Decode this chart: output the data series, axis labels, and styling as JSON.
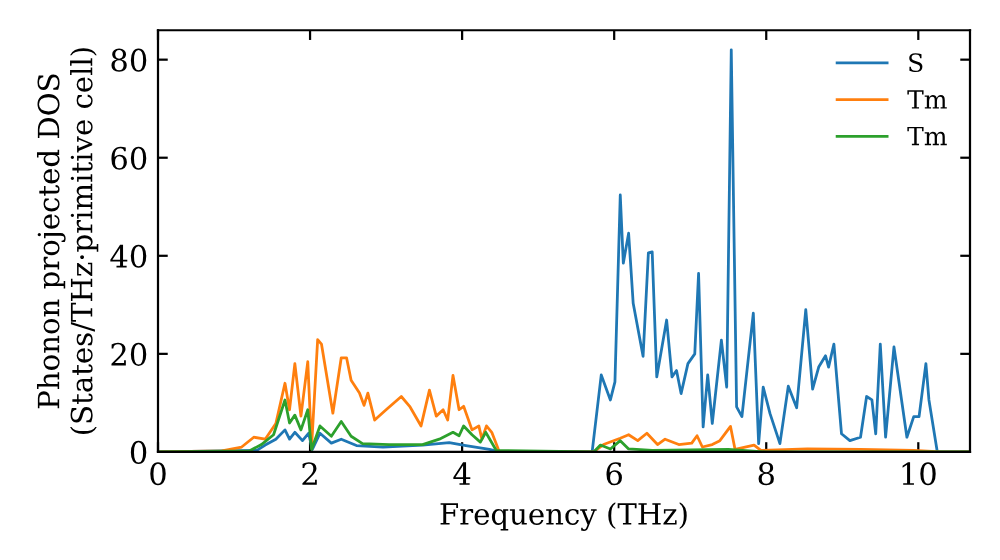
{
  "chart_data": {
    "type": "line",
    "xlabel": "Frequency (THz)",
    "ylabel": "Phonon projected DOS\n(States/THz·primitive cell)",
    "xlim": [
      0,
      10.68
    ],
    "ylim": [
      0,
      86
    ],
    "xticks": [
      0,
      2,
      4,
      6,
      8,
      10
    ],
    "yticks": [
      0,
      20,
      40,
      60,
      80
    ],
    "grid": false,
    "legend": "top right",
    "marker": "none",
    "line_style": "solid",
    "series": [
      {
        "name": "S",
        "color": "#1f77b4",
        "x": [
          0,
          1.3,
          1.41,
          1.55,
          1.67,
          1.73,
          1.8,
          1.9,
          1.98,
          2.03,
          2.13,
          2.28,
          2.41,
          2.61,
          2.96,
          3.48,
          3.83,
          4.05,
          4.36,
          4.49,
          5.71,
          5.83,
          5.95,
          6.01,
          6.08,
          6.12,
          6.19,
          6.25,
          6.38,
          6.45,
          6.5,
          6.56,
          6.69,
          6.76,
          6.82,
          6.88,
          6.97,
          7.06,
          7.11,
          7.17,
          7.23,
          7.29,
          7.41,
          7.48,
          7.54,
          7.61,
          7.68,
          7.83,
          7.9,
          7.96,
          8.05,
          8.18,
          8.29,
          8.4,
          8.52,
          8.61,
          8.69,
          8.78,
          8.82,
          8.89,
          8.99,
          9.1,
          9.24,
          9.32,
          9.39,
          9.44,
          9.5,
          9.57,
          9.68,
          9.85,
          9.94,
          10.01,
          10.1,
          10.14,
          10.25,
          10.68
        ],
        "values": [
          0,
          0.3,
          1.4,
          2.6,
          4.5,
          2.6,
          4,
          2.3,
          3.8,
          0.5,
          3.8,
          1.8,
          2.6,
          1.3,
          1,
          1.4,
          1.9,
          1.3,
          0.5,
          0,
          0,
          15.7,
          10.6,
          14.3,
          52.4,
          38.5,
          44.6,
          30.3,
          19.5,
          40.6,
          40.8,
          15.3,
          26.9,
          15.3,
          16.6,
          11.9,
          18,
          20,
          36.4,
          5.1,
          15.7,
          5.8,
          22.8,
          13.2,
          82,
          9.2,
          7.2,
          28.3,
          1.7,
          13.2,
          7.8,
          1.7,
          13.4,
          9,
          29,
          12.8,
          17.3,
          19.6,
          17.3,
          22,
          3.7,
          2.3,
          3,
          11.3,
          10.6,
          3.7,
          22,
          3,
          21.4,
          3,
          7.2,
          7.2,
          18,
          10.6,
          0,
          0
        ]
      },
      {
        "name": "Tm",
        "color": "#ff7f0e",
        "x": [
          0,
          0.84,
          1.1,
          1.26,
          1.41,
          1.55,
          1.67,
          1.73,
          1.8,
          1.88,
          1.97,
          2.02,
          2.1,
          2.15,
          2.3,
          2.41,
          2.48,
          2.54,
          2.65,
          2.71,
          2.76,
          2.85,
          3.0,
          3.2,
          3.31,
          3.46,
          3.57,
          3.66,
          3.75,
          3.81,
          3.88,
          3.96,
          4.02,
          4.13,
          4.22,
          4.26,
          4.32,
          4.39,
          4.49,
          5.73,
          5.86,
          6.08,
          6.19,
          6.31,
          6.43,
          6.57,
          6.67,
          6.85,
          7.02,
          7.09,
          7.16,
          7.29,
          7.39,
          7.53,
          7.59,
          7.84,
          7.93,
          8.54,
          9.24,
          9.94,
          10.3,
          10.68
        ],
        "values": [
          0,
          0.2,
          1,
          3,
          2.6,
          5.8,
          14,
          8.6,
          18,
          7.3,
          18.4,
          1,
          22.9,
          22,
          7.9,
          19.2,
          19.2,
          14.6,
          12,
          9.5,
          12,
          6.5,
          8.6,
          11.3,
          9.3,
          5.3,
          12.6,
          7.3,
          8.6,
          6.5,
          15.6,
          8.6,
          9.3,
          4.5,
          5.3,
          2.6,
          5.3,
          4,
          0,
          0,
          1.5,
          2.8,
          3.5,
          2.3,
          3.8,
          1.5,
          2.6,
          1.5,
          1.8,
          3.3,
          1,
          1.5,
          2.3,
          5.2,
          0.5,
          1.4,
          0.3,
          0.6,
          0.5,
          0.3,
          0,
          0
        ]
      },
      {
        "name": "Tm",
        "color": "#2ca02c",
        "x": [
          0,
          1.2,
          1.36,
          1.52,
          1.67,
          1.73,
          1.8,
          1.88,
          1.97,
          2.02,
          2.13,
          2.28,
          2.41,
          2.54,
          2.69,
          3.04,
          3.48,
          3.7,
          3.88,
          3.96,
          4.02,
          4.13,
          4.24,
          4.31,
          4.45,
          5.73,
          5.82,
          5.95,
          6.08,
          6.19,
          6.5,
          7.5,
          8.0,
          10.68
        ],
        "values": [
          0,
          0.2,
          1.5,
          3.5,
          10.6,
          5.9,
          7.5,
          4.5,
          8.6,
          0.5,
          5.3,
          3.2,
          6.2,
          3.2,
          1.7,
          1.5,
          1.5,
          2.6,
          4,
          3.3,
          5.3,
          3.5,
          2,
          4,
          0.3,
          0,
          1.4,
          0.6,
          2.3,
          0.6,
          0.3,
          0.5,
          0,
          0
        ]
      }
    ]
  }
}
